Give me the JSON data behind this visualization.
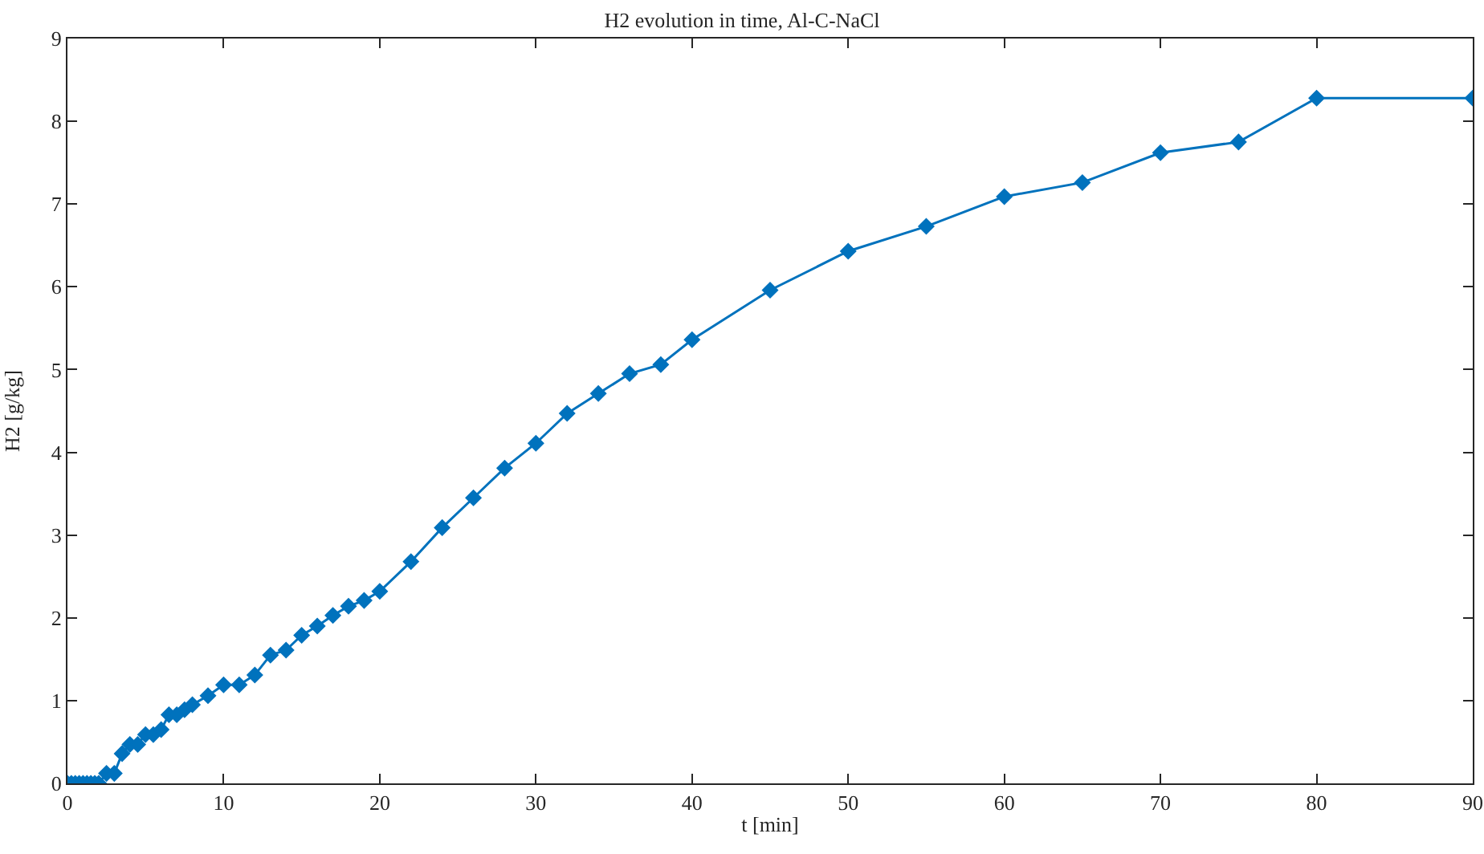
{
  "chart_data": {
    "type": "line",
    "title": "H2 evolution in time, Al-C-NaCl",
    "xlabel": "t [min]",
    "ylabel": "H2 [g/kg]",
    "marker": "diamond",
    "grid": false,
    "xlim": [
      0,
      90
    ],
    "ylim": [
      0,
      9
    ],
    "xticks": [
      0,
      10,
      20,
      30,
      40,
      50,
      60,
      70,
      80,
      90
    ],
    "yticks": [
      0,
      1,
      2,
      3,
      4,
      5,
      6,
      7,
      8,
      9
    ],
    "x": [
      0,
      0.25,
      0.5,
      0.75,
      1,
      1.25,
      1.5,
      1.75,
      2,
      2.5,
      3,
      3.5,
      4,
      4.5,
      5,
      5.5,
      6,
      6.5,
      7,
      7.5,
      8,
      9,
      10,
      11,
      12,
      13,
      14,
      15,
      16,
      17,
      18,
      19,
      20,
      22,
      24,
      26,
      28,
      30,
      32,
      34,
      36,
      38,
      40,
      45,
      50,
      55,
      60,
      65,
      70,
      75,
      80,
      90
    ],
    "series": [
      {
        "color": "#0072bd",
        "values": [
          0,
          0,
          0,
          0,
          0,
          0,
          0,
          0,
          0,
          0.12,
          0.12,
          0.36,
          0.47,
          0.47,
          0.59,
          0.59,
          0.65,
          0.83,
          0.83,
          0.89,
          0.95,
          1.06,
          1.19,
          1.19,
          1.31,
          1.55,
          1.61,
          1.79,
          1.9,
          2.03,
          2.14,
          2.21,
          2.32,
          2.68,
          3.09,
          3.45,
          3.81,
          4.11,
          4.47,
          4.71,
          4.95,
          5.06,
          5.36,
          5.96,
          6.43,
          6.73,
          7.09,
          7.26,
          7.62,
          7.75,
          8.28,
          8.28
        ]
      }
    ]
  }
}
